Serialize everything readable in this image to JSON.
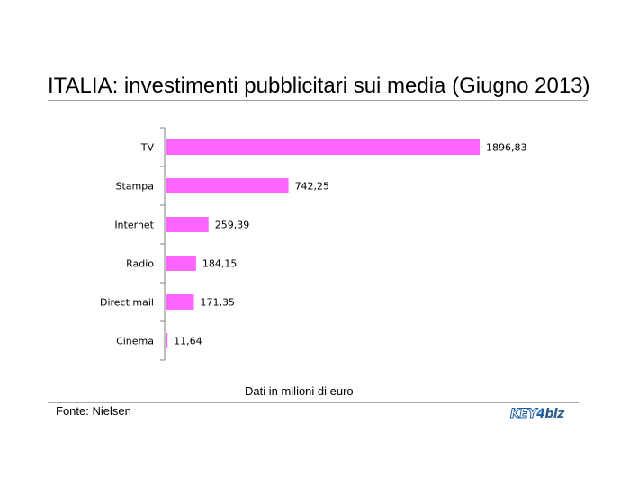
{
  "title": "ITALIA: investimenti pubblicitari sui media (Giugno 2013)",
  "axis_note": "Dati in milioni di euro",
  "source": "Fonte: Nielsen",
  "logo": {
    "part1": "KEY",
    "part2": "4",
    "part3": "biz"
  },
  "colors": {
    "bar": "#ff66ff",
    "axis": "#808080",
    "rule": "#a6a6a6"
  },
  "chart_data": {
    "type": "bar",
    "orientation": "horizontal",
    "title": "ITALIA: investimenti pubblicitari sui media (Giugno 2013)",
    "xlabel": "Dati in milioni di euro",
    "ylabel": "",
    "categories": [
      "TV",
      "Stampa",
      "Internet",
      "Radio",
      "Direct mail",
      "Cinema"
    ],
    "values": [
      1896.83,
      742.25,
      259.39,
      184.15,
      171.35,
      11.64
    ],
    "value_labels": [
      "1896,83",
      "742,25",
      "259,39",
      "184,15",
      "171,35",
      "11,64"
    ],
    "xlim": [
      0,
      1896.83
    ],
    "grid": false,
    "legend": "none"
  }
}
